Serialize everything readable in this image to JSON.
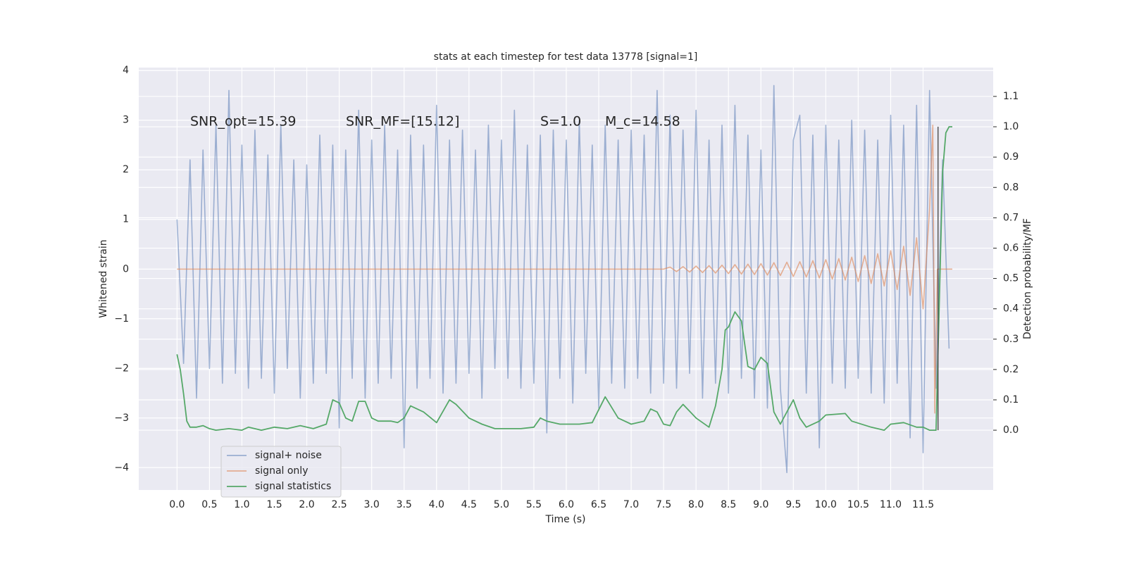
{
  "chart_data": {
    "type": "line",
    "title": "stats at each timestep for test data 13778 [signal=1]",
    "xlabel": "Time (s)",
    "ylabel": "Whitened strain",
    "y2label": "Detection probability/MF",
    "annotations": [
      "SNR_opt=15.39",
      "SNR_MF=[15.12]",
      "S=1.0",
      "M_c=14.58"
    ],
    "xlim": [
      -0.59,
      12.58
    ],
    "ylim": [
      -4.45,
      4.06
    ],
    "y2lim": [
      -0.197,
      1.195
    ],
    "xticks": [
      {
        "value": 0,
        "label": "0.0"
      },
      0.5,
      {
        "value": 1,
        "label": "1.0"
      },
      1.5,
      {
        "value": 2,
        "label": "2.0"
      },
      2.5,
      {
        "value": 3,
        "label": "3.0"
      },
      3.5,
      {
        "value": 4,
        "label": "4.0"
      },
      4.5,
      {
        "value": 5,
        "label": "5.0"
      },
      5.5,
      {
        "value": 6,
        "label": "6.0"
      },
      6.5,
      {
        "value": 7,
        "label": "7.0"
      },
      7.5,
      {
        "value": 8,
        "label": "8.0"
      },
      8.5,
      {
        "value": 9,
        "label": "9.0"
      },
      9.5,
      {
        "value": 10,
        "label": "10.0"
      },
      10.5,
      {
        "value": 11,
        "label": "11.0"
      },
      11.5
    ],
    "yticks": [
      {
        "value": -4,
        "label": "−4"
      },
      {
        "value": -3,
        "label": "−3"
      },
      {
        "value": -2,
        "label": "−2"
      },
      {
        "value": -1,
        "label": "−1"
      },
      0,
      1,
      2,
      3,
      4
    ],
    "y2ticks": [
      {
        "value": 0,
        "label": "0.0"
      },
      0.1,
      0.2,
      0.3,
      0.4,
      0.5,
      0.6,
      0.7,
      0.8,
      0.9,
      {
        "value": 1,
        "label": "1.0"
      },
      1.1
    ],
    "grid": true,
    "legend": "lower left",
    "vline": {
      "x": 11.73,
      "ymin": 0,
      "ymax": 1,
      "color": "#555555"
    },
    "series": [
      {
        "name": "signal+ noise",
        "color": "#4c72b0",
        "alpha": 0.5,
        "x": [
          0,
          0.1,
          0.2,
          0.3,
          0.4,
          0.5,
          0.6,
          0.7,
          0.8,
          0.9,
          1,
          1.1,
          1.2,
          1.3,
          1.4,
          1.5,
          1.6,
          1.7,
          1.8,
          1.9,
          2,
          2.1,
          2.2,
          2.3,
          2.4,
          2.5,
          2.6,
          2.7,
          2.8,
          2.9,
          3,
          3.1,
          3.2,
          3.3,
          3.4,
          3.5,
          3.6,
          3.7,
          3.8,
          3.9,
          4,
          4.1,
          4.2,
          4.3,
          4.4,
          4.5,
          4.6,
          4.7,
          4.8,
          4.9,
          5,
          5.1,
          5.2,
          5.3,
          5.4,
          5.5,
          5.6,
          5.7,
          5.8,
          5.9,
          6,
          6.1,
          6.2,
          6.3,
          6.4,
          6.5,
          6.6,
          6.7,
          6.8,
          6.9,
          7,
          7.1,
          7.2,
          7.3,
          7.4,
          7.5,
          7.6,
          7.7,
          7.8,
          7.9,
          8,
          8.1,
          8.2,
          8.3,
          8.4,
          8.5,
          8.6,
          8.7,
          8.8,
          8.9,
          9,
          9.1,
          9.2,
          9.3,
          9.4,
          9.5,
          9.6,
          9.7,
          9.8,
          9.9,
          10,
          10.1,
          10.2,
          10.3,
          10.4,
          10.5,
          10.6,
          10.7,
          10.8,
          10.9,
          11,
          11.1,
          11.2,
          11.3,
          11.4,
          11.5,
          11.6,
          11.7,
          11.8,
          11.9
        ],
        "values": [
          1.0,
          -1.9,
          2.2,
          -2.6,
          2.4,
          -2.0,
          2.9,
          -2.3,
          3.6,
          -2.1,
          2.5,
          -2.4,
          2.8,
          -2.2,
          2.3,
          -2.5,
          2.9,
          -2.0,
          2.2,
          -2.6,
          2.1,
          -2.3,
          2.7,
          -2.1,
          2.5,
          -3.2,
          2.4,
          -2.2,
          3.2,
          -2.6,
          2.6,
          -2.3,
          2.9,
          -2.2,
          2.4,
          -3.6,
          2.7,
          -2.4,
          2.5,
          -2.2,
          3.3,
          -2.5,
          2.6,
          -2.3,
          2.8,
          -2.1,
          2.4,
          -2.6,
          2.9,
          -2.0,
          2.6,
          -2.2,
          3.2,
          -2.4,
          2.5,
          -2.3,
          2.7,
          -3.3,
          2.8,
          -2.2,
          2.6,
          -2.7,
          3.0,
          -2.1,
          2.5,
          -2.8,
          2.9,
          -2.3,
          2.6,
          -2.4,
          2.8,
          -2.2,
          2.7,
          -2.5,
          3.6,
          -2.3,
          3.1,
          -2.4,
          2.8,
          -2.1,
          3.2,
          -2.6,
          2.6,
          -2.3,
          2.9,
          -2.5,
          3.3,
          -2.2,
          2.7,
          -2.6,
          2.4,
          -2.8,
          3.7,
          -2.4,
          -4.1,
          2.6,
          3.1,
          -2.5,
          2.7,
          -3.6,
          2.9,
          -2.3,
          2.6,
          -2.4,
          3.0,
          -2.2,
          2.8,
          -2.5,
          2.6,
          -2.7,
          3.1,
          -2.3,
          2.9,
          -3.4,
          3.3,
          -3.7,
          3.6,
          -2.4,
          2.2,
          -1.6
        ]
      },
      {
        "name": "signal only",
        "color": "#dd8452",
        "alpha": 0.6,
        "x": [
          0,
          7.5,
          7.6,
          7.7,
          7.8,
          7.9,
          8,
          8.1,
          8.2,
          8.3,
          8.4,
          8.5,
          8.6,
          8.7,
          8.8,
          8.9,
          9,
          9.1,
          9.2,
          9.3,
          9.4,
          9.5,
          9.6,
          9.7,
          9.8,
          9.9,
          10,
          10.1,
          10.2,
          10.3,
          10.4,
          10.5,
          10.6,
          10.7,
          10.8,
          10.9,
          11,
          11.1,
          11.2,
          11.3,
          11.4,
          11.5,
          11.6,
          11.65,
          11.68,
          11.72,
          11.95
        ],
        "values": [
          0,
          0,
          0.04,
          -0.05,
          0.05,
          -0.06,
          0.06,
          -0.07,
          0.07,
          -0.08,
          0.08,
          -0.09,
          0.09,
          -0.1,
          0.1,
          -0.11,
          0.11,
          -0.12,
          0.13,
          -0.13,
          0.14,
          -0.15,
          0.15,
          -0.16,
          0.17,
          -0.18,
          0.19,
          -0.2,
          0.21,
          -0.22,
          0.24,
          -0.25,
          0.27,
          -0.29,
          0.31,
          -0.34,
          0.37,
          -0.41,
          0.46,
          -0.53,
          0.63,
          -0.8,
          1.2,
          2.9,
          -2.9,
          0,
          0
        ]
      },
      {
        "name": "signal statistics",
        "color": "#55a868",
        "alpha": 1,
        "axis": "y2",
        "x": [
          0,
          0.05,
          0.1,
          0.15,
          0.2,
          0.3,
          0.4,
          0.5,
          0.6,
          0.8,
          1,
          1.1,
          1.3,
          1.5,
          1.7,
          1.9,
          2.1,
          2.3,
          2.4,
          2.5,
          2.6,
          2.7,
          2.8,
          2.9,
          3,
          3.1,
          3.3,
          3.4,
          3.5,
          3.6,
          3.8,
          4,
          4.2,
          4.3,
          4.5,
          4.7,
          4.9,
          5.3,
          5.5,
          5.6,
          5.7,
          5.9,
          6.2,
          6.4,
          6.6,
          6.8,
          7,
          7.2,
          7.3,
          7.4,
          7.5,
          7.6,
          7.7,
          7.8,
          8,
          8.2,
          8.3,
          8.4,
          8.45,
          8.5,
          8.6,
          8.7,
          8.8,
          8.9,
          9,
          9.1,
          9.2,
          9.3,
          9.4,
          9.5,
          9.6,
          9.7,
          9.9,
          10,
          10.3,
          10.4,
          10.7,
          10.9,
          11,
          11.2,
          11.4,
          11.5,
          11.6,
          11.7,
          11.8,
          11.85,
          11.9,
          11.95
        ],
        "values": [
          0.25,
          0.2,
          0.12,
          0.03,
          0.01,
          0.01,
          0.015,
          0.005,
          0.0,
          0.005,
          0.0,
          0.01,
          0.0,
          0.01,
          0.005,
          0.015,
          0.005,
          0.02,
          0.1,
          0.09,
          0.04,
          0.03,
          0.095,
          0.095,
          0.04,
          0.03,
          0.03,
          0.025,
          0.04,
          0.08,
          0.06,
          0.025,
          0.1,
          0.085,
          0.04,
          0.02,
          0.005,
          0.005,
          0.01,
          0.04,
          0.03,
          0.02,
          0.02,
          0.025,
          0.11,
          0.04,
          0.02,
          0.03,
          0.07,
          0.06,
          0.02,
          0.015,
          0.06,
          0.085,
          0.04,
          0.01,
          0.08,
          0.2,
          0.33,
          0.34,
          0.39,
          0.36,
          0.21,
          0.2,
          0.24,
          0.22,
          0.06,
          0.02,
          0.06,
          0.1,
          0.04,
          0.01,
          0.03,
          0.05,
          0.055,
          0.03,
          0.01,
          0.0,
          0.02,
          0.025,
          0.01,
          0.01,
          0.0,
          0.0,
          0.85,
          0.98,
          1.0,
          1.0
        ]
      }
    ]
  }
}
